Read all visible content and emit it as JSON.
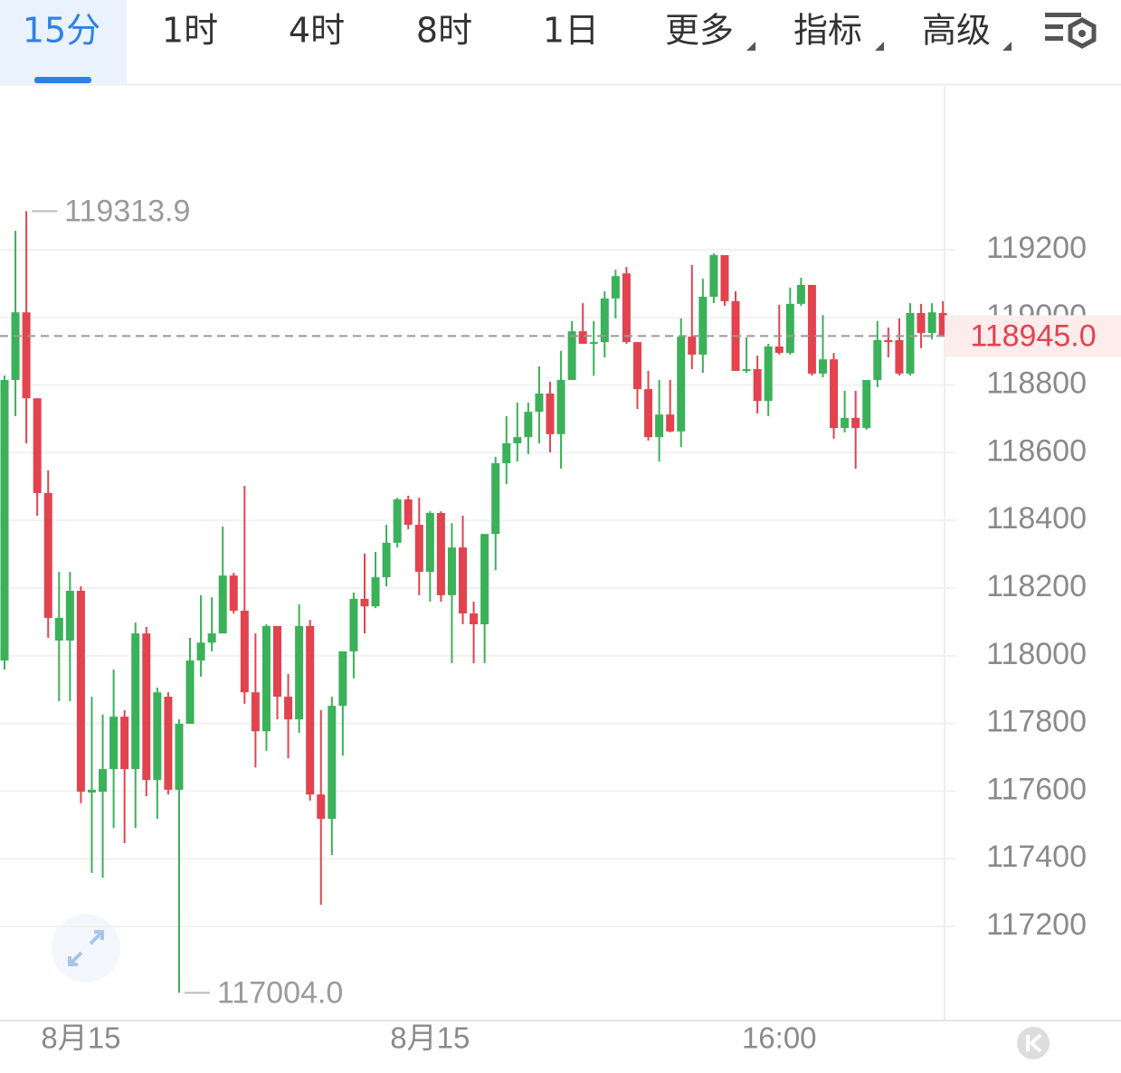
{
  "tabs": [
    "15分",
    "1时",
    "4时",
    "8时",
    "1日",
    "更多",
    "指标",
    "高级"
  ],
  "chart_data": {
    "type": "candlestick",
    "up_color": "#3bb15a",
    "down_color": "#e2434f",
    "categories": [
      null,
      null,
      null,
      null,
      null,
      null,
      null,
      "8月15",
      null,
      null,
      null,
      null,
      null,
      null,
      null,
      null,
      null,
      null,
      null,
      null,
      null,
      null,
      null,
      null,
      null,
      null,
      null,
      null,
      null,
      null,
      null,
      null,
      null,
      null,
      null,
      null,
      null,
      null,
      null,
      "8月15",
      null,
      null,
      null,
      null,
      null,
      null,
      null,
      null,
      null,
      null,
      null,
      null,
      null,
      null,
      null,
      null,
      null,
      null,
      null,
      null,
      null,
      null,
      null,
      null,
      null,
      null,
      null,
      null,
      null,
      null,
      null,
      "16:00",
      null,
      null,
      null,
      null,
      null,
      null,
      null,
      null,
      null,
      null,
      null,
      null,
      null,
      null,
      null
    ],
    "open": [
      117986,
      118815,
      119015,
      118761,
      118481,
      118045,
      118045,
      118192,
      117596,
      117598,
      117665,
      117820,
      117665,
      118066,
      117633,
      117879,
      117604,
      117799,
      117986,
      118039,
      118066,
      118237,
      118133,
      117892,
      117777,
      118088,
      117879,
      117812,
      118088,
      117590,
      117518,
      117852,
      118013,
      118168,
      118146,
      118232,
      118334,
      118462,
      118387,
      118248,
      118422,
      118179,
      118320,
      118125,
      118093,
      118360,
      118569,
      118628,
      118646,
      118721,
      118775,
      118655,
      118815,
      118959,
      118922,
      118927,
      119056,
      119130,
      118927,
      118788,
      118646,
      118713,
      118663,
      118943,
      118890,
      119061,
      119184,
      119048,
      118842,
      118847,
      118753,
      118914,
      118895,
      119040,
      119096,
      118834,
      118876,
      118673,
      118703,
      118673,
      118815,
      118933,
      118933,
      118834,
      119013,
      118954,
      119013
    ],
    "high": [
      118828,
      119256,
      119313.9,
      118761,
      118548,
      118248,
      118248,
      118205,
      117879,
      117826,
      117959,
      117839,
      118098,
      118085,
      117906,
      117892,
      117812,
      118053,
      118179,
      118173,
      118382,
      118245,
      118502,
      118066,
      118093,
      118088,
      117946,
      118152,
      118106,
      117839,
      117879,
      118013,
      118187,
      118302,
      118307,
      118387,
      118467,
      118473,
      118467,
      118427,
      118427,
      118392,
      118414,
      118160,
      118360,
      118588,
      118708,
      118748,
      118748,
      118855,
      118810,
      118901,
      118989,
      119042,
      118989,
      119077,
      119141,
      119149,
      118927,
      118842,
      118815,
      118815,
      118997,
      119155,
      119114,
      119189,
      119184,
      119077,
      118941,
      118887,
      118922,
      119037,
      119088,
      119117,
      119096,
      119007,
      118895,
      118783,
      118783,
      118815,
      118989,
      118970,
      118997,
      119042,
      119040,
      119042,
      119048
    ],
    "low": [
      117959,
      118708,
      118628,
      118414,
      118053,
      117866,
      117866,
      117564,
      117358,
      117344,
      117491,
      117446,
      117491,
      117585,
      117518,
      117590,
      117004,
      117799,
      117938,
      118013,
      118066,
      118125,
      117858,
      117670,
      117719,
      117812,
      117697,
      117772,
      117572,
      117264,
      117411,
      117705,
      117933,
      118066,
      118141,
      118205,
      118320,
      118374,
      118179,
      118160,
      118160,
      117978,
      118093,
      117978,
      117978,
      118253,
      118507,
      118574,
      118596,
      118628,
      118601,
      118553,
      118815,
      118922,
      118828,
      118882,
      118997,
      118922,
      118729,
      118636,
      118574,
      118660,
      118617,
      118847,
      118836,
      119042,
      119034,
      118842,
      118836,
      118716,
      118708,
      118890,
      118890,
      119034,
      118828,
      118823,
      118641,
      118660,
      118553,
      118668,
      118794,
      118882,
      118828,
      118828,
      118909,
      118935,
      118943
    ],
    "close": [
      118815,
      119015,
      118761,
      118481,
      118112,
      118112,
      118192,
      117598,
      117604,
      117665,
      117820,
      117665,
      118066,
      117633,
      117892,
      117604,
      117799,
      117986,
      118039,
      118066,
      118237,
      118133,
      117892,
      117777,
      118088,
      117879,
      117812,
      118088,
      117590,
      117518,
      117852,
      118013,
      118168,
      118146,
      118232,
      118334,
      118462,
      118387,
      118248,
      118422,
      118179,
      118320,
      118125,
      118093,
      118360,
      118569,
      118628,
      118646,
      118721,
      118775,
      118655,
      118815,
      118959,
      118922,
      118927,
      119056,
      119122,
      118927,
      118788,
      118646,
      118713,
      118663,
      118943,
      118890,
      119061,
      119184,
      119048,
      118842,
      118847,
      118753,
      118914,
      118895,
      119040,
      119096,
      118834,
      118876,
      118673,
      118703,
      118673,
      118815,
      118933,
      118927,
      118834,
      119013,
      118954,
      119015,
      118945
    ],
    "ylim": [
      116922,
      119684
    ],
    "yticks": [
      117200,
      117400,
      117600,
      117800,
      118000,
      118200,
      118400,
      118600,
      118800,
      119000,
      119200
    ],
    "grid": true,
    "max_label": {
      "value": 119313.9,
      "label": "119313.9"
    },
    "min_label": {
      "value": 117004,
      "label": "117004.0"
    },
    "last_price": {
      "value": 118945,
      "label": "118945.0"
    }
  }
}
